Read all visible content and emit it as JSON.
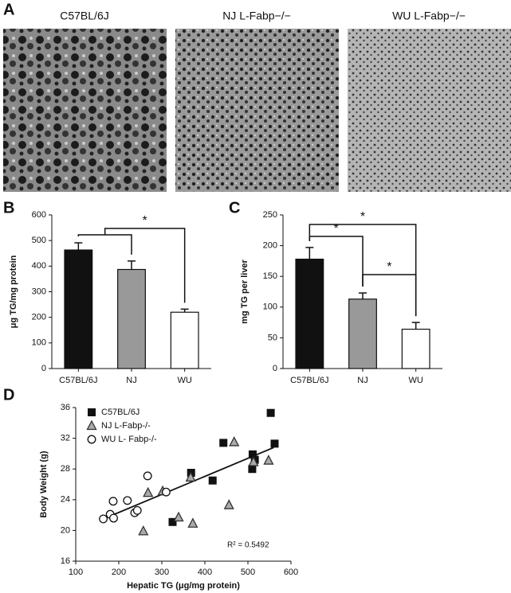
{
  "images": {
    "panel": "A",
    "captions": [
      "C57BL/6J",
      "NJ L-Fabp−/−",
      "WU L-Fabp−/−"
    ]
  },
  "chart_data": [
    {
      "type": "bar",
      "panel": "B",
      "ylabel": "μg TG/mg protein",
      "categories": [
        "C57BL/6J",
        "NJ",
        "WU"
      ],
      "values": [
        463,
        387,
        220
      ],
      "errors": [
        28,
        33,
        12
      ],
      "colors": [
        "#111111",
        "#999999",
        "#ffffff"
      ],
      "ylim": [
        0,
        600
      ],
      "yticks": [
        0,
        100,
        200,
        300,
        400,
        500,
        600
      ],
      "annotations": [
        "*"
      ]
    },
    {
      "type": "bar",
      "panel": "C",
      "ylabel": "mg TG per liver",
      "categories": [
        "C57BL/6J",
        "NJ",
        "WU"
      ],
      "values": [
        178,
        113,
        64
      ],
      "errors": [
        19,
        10,
        11
      ],
      "colors": [
        "#111111",
        "#999999",
        "#ffffff"
      ],
      "ylim": [
        0,
        250
      ],
      "yticks": [
        0,
        50,
        100,
        150,
        200,
        250
      ],
      "annotations": [
        "*",
        "*",
        "*"
      ]
    },
    {
      "type": "scatter",
      "panel": "D",
      "xlabel": "Hepatic TG (μg/mg protein)",
      "ylabel": "Body Weight (g)",
      "xlim": [
        100,
        600
      ],
      "xticks": [
        100,
        200,
        300,
        400,
        500,
        600
      ],
      "ylim": [
        16,
        36
      ],
      "yticks": [
        16,
        20,
        24,
        28,
        32,
        36
      ],
      "legend": "upper left",
      "series": [
        {
          "name": "C57BL/6J",
          "marker": "square",
          "color": "#111111",
          "x": [
            443,
            511,
            510,
            516,
            553,
            562,
            368,
            418,
            325
          ],
          "values": [
            31.4,
            29.9,
            28.0,
            29.2,
            35.3,
            31.3,
            27.5,
            26.5,
            21.1
          ]
        },
        {
          "name": "NJ L-Fabp-/-",
          "marker": "triangle",
          "color": "#aaaaaa",
          "x": [
            468,
            548,
            513,
            367,
            302,
            268,
            257,
            339,
            372,
            456
          ],
          "values": [
            31.5,
            29.1,
            28.9,
            26.9,
            25.1,
            24.9,
            19.9,
            21.7,
            20.9,
            23.3
          ]
        },
        {
          "name": "WU L-  Fabp-/-",
          "marker": "circle",
          "color": "#ffffff",
          "x": [
            267,
            310,
            220,
            187,
            237,
            243,
            180,
            188,
            164
          ],
          "values": [
            27.1,
            25.0,
            23.9,
            23.8,
            22.3,
            22.6,
            22.1,
            21.6,
            21.5
          ]
        }
      ],
      "trendline": {
        "x": [
          160,
          560
        ],
        "y": [
          21.4,
          30.8
        ]
      },
      "annotation": "R² = 0.5492"
    }
  ]
}
